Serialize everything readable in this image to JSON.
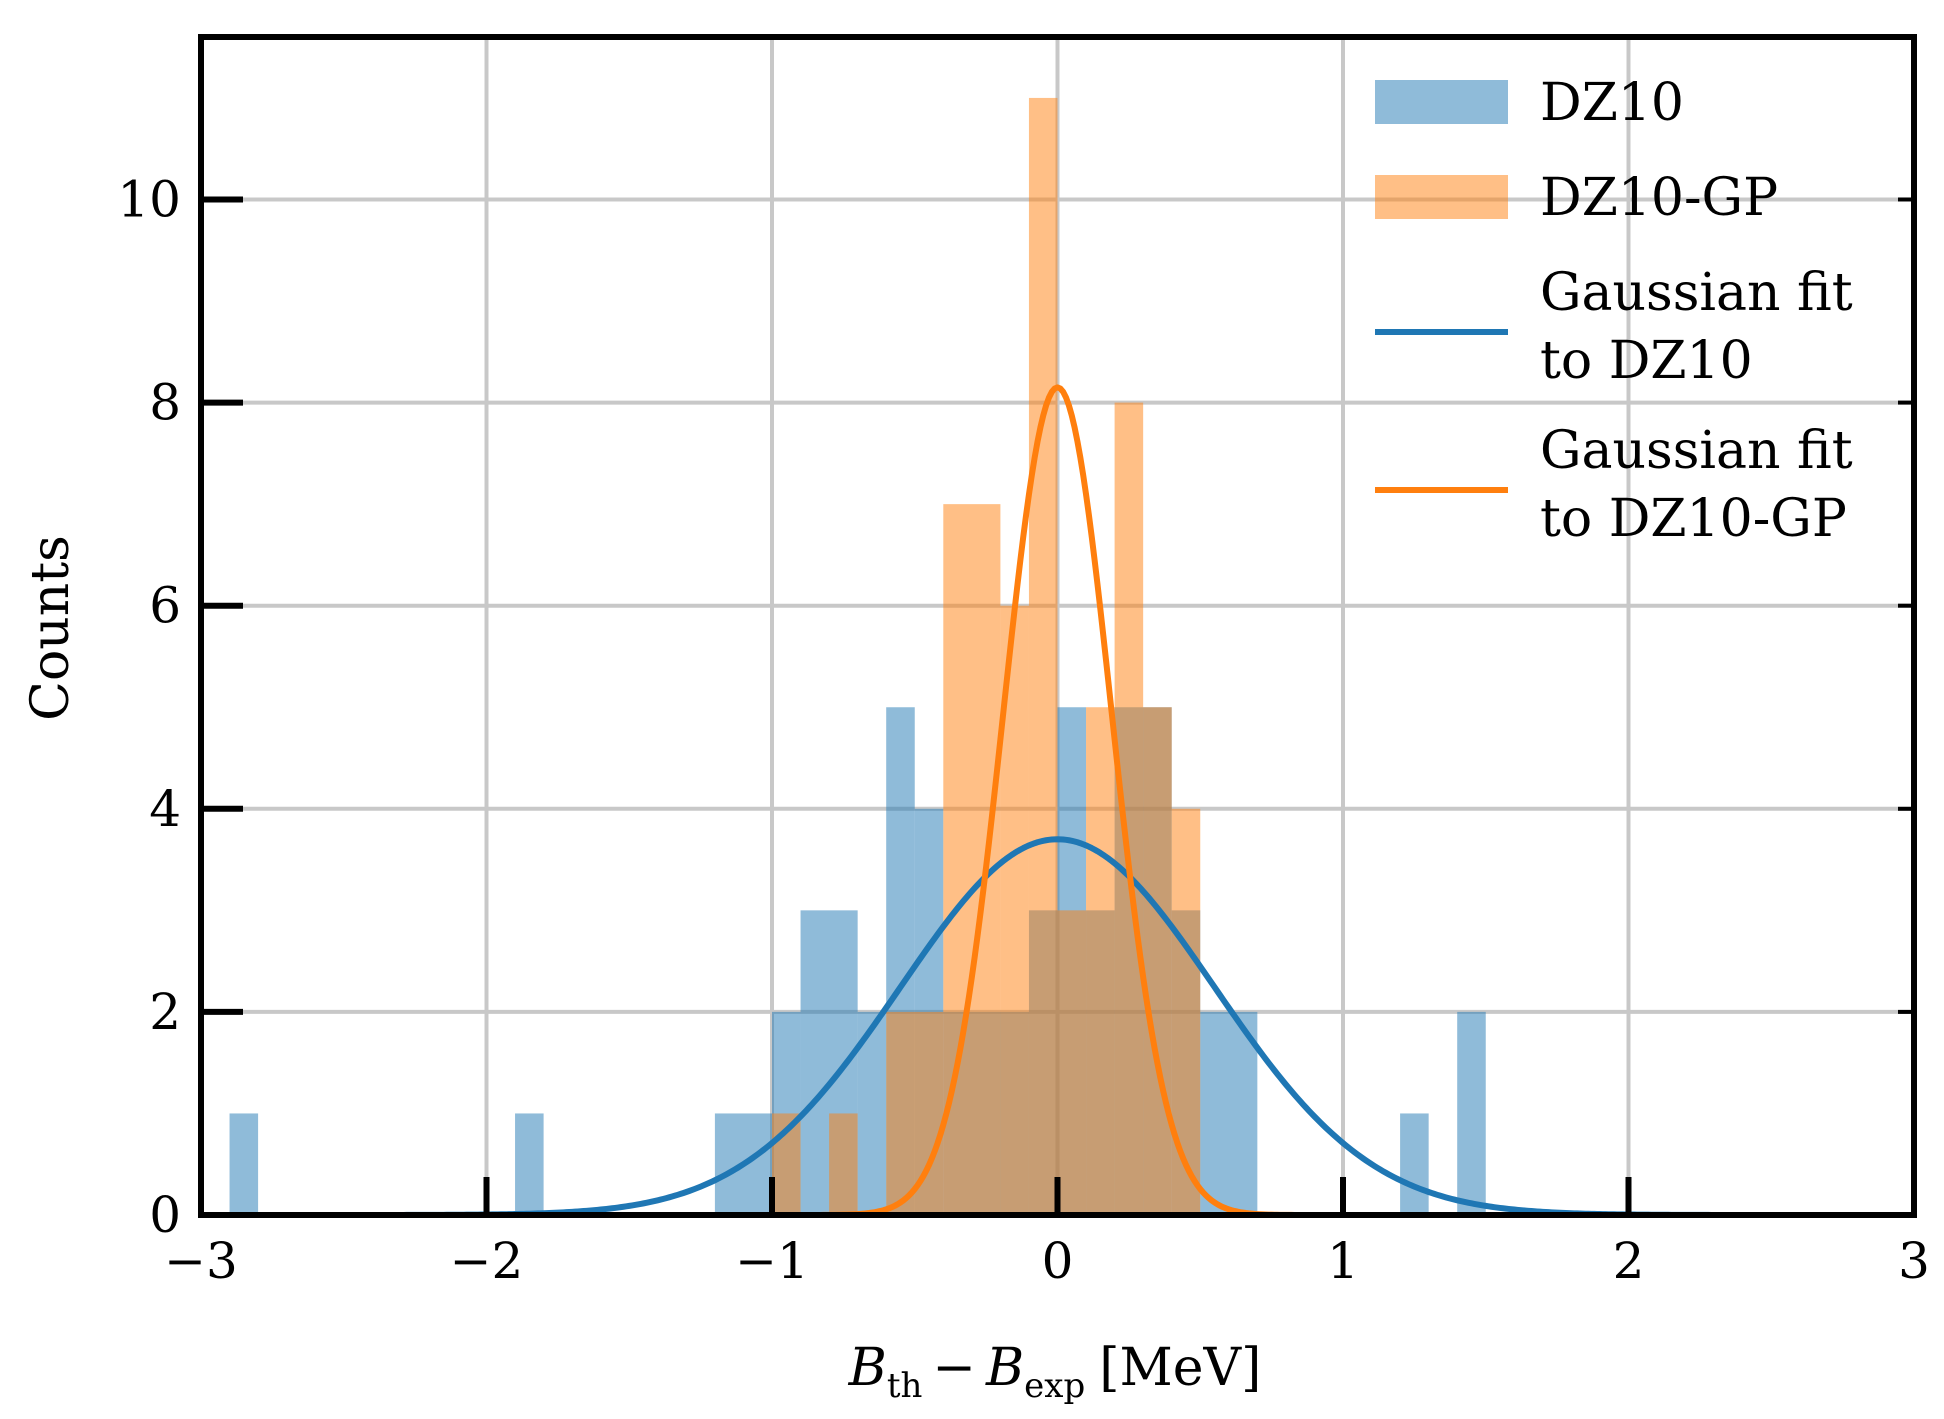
{
  "chart_data": {
    "type": "histogram",
    "xlabel": {
      "B": "B",
      "th": "th",
      "minus": "−",
      "B2": "B",
      "exp": "exp",
      "unit": "[MeV]"
    },
    "ylabel": "Counts",
    "xlim": [
      -3,
      3
    ],
    "ylim": [
      0,
      11.6
    ],
    "x_ticks": [
      -3,
      -2,
      -1,
      0,
      1,
      2,
      3
    ],
    "x_tick_labels": [
      "−3",
      "−2",
      "−1",
      "0",
      "1",
      "2",
      "3"
    ],
    "y_ticks": [
      0,
      2,
      4,
      6,
      8,
      10
    ],
    "y_tick_labels": [
      "0",
      "2",
      "4",
      "6",
      "8",
      "10"
    ],
    "grid": true,
    "legend_position": "top-right",
    "series": [
      {
        "name": "DZ10",
        "kind": "bars",
        "color": "#1f77b4",
        "opacity": 0.5,
        "bins": [
          {
            "x0": -2.9,
            "x1": -2.8,
            "count": 1
          },
          {
            "x0": -1.9,
            "x1": -1.8,
            "count": 1
          },
          {
            "x0": -1.2,
            "x1": -1.0,
            "count": 1
          },
          {
            "x0": -1.0,
            "x1": -0.9,
            "count": 2
          },
          {
            "x0": -0.9,
            "x1": -0.7,
            "count": 3
          },
          {
            "x0": -0.7,
            "x1": -0.6,
            "count": 2
          },
          {
            "x0": -0.6,
            "x1": -0.5,
            "count": 5
          },
          {
            "x0": -0.5,
            "x1": -0.4,
            "count": 4
          },
          {
            "x0": -0.4,
            "x1": -0.1,
            "count": 2
          },
          {
            "x0": -0.1,
            "x1": 0.0,
            "count": 3
          },
          {
            "x0": 0.0,
            "x1": 0.1,
            "count": 5
          },
          {
            "x0": 0.1,
            "x1": 0.2,
            "count": 3
          },
          {
            "x0": 0.2,
            "x1": 0.4,
            "count": 5
          },
          {
            "x0": 0.4,
            "x1": 0.5,
            "count": 3
          },
          {
            "x0": 0.5,
            "x1": 0.7,
            "count": 2
          },
          {
            "x0": 1.2,
            "x1": 1.3,
            "count": 1
          },
          {
            "x0": 1.4,
            "x1": 1.5,
            "count": 2
          }
        ]
      },
      {
        "name": "DZ10-GP",
        "kind": "bars",
        "color": "#ff7f0e",
        "opacity": 0.5,
        "bins": [
          {
            "x0": -1.0,
            "x1": -0.9,
            "count": 1
          },
          {
            "x0": -0.8,
            "x1": -0.7,
            "count": 1
          },
          {
            "x0": -0.6,
            "x1": -0.4,
            "count": 2
          },
          {
            "x0": -0.4,
            "x1": -0.2,
            "count": 7
          },
          {
            "x0": -0.2,
            "x1": -0.1,
            "count": 6
          },
          {
            "x0": -0.1,
            "x1": 0.0,
            "count": 11
          },
          {
            "x0": 0.0,
            "x1": 0.1,
            "count": 3
          },
          {
            "x0": 0.1,
            "x1": 0.2,
            "count": 5
          },
          {
            "x0": 0.2,
            "x1": 0.3,
            "count": 8
          },
          {
            "x0": 0.3,
            "x1": 0.4,
            "count": 5
          },
          {
            "x0": 0.4,
            "x1": 0.5,
            "count": 4
          }
        ]
      },
      {
        "name": "Gaussian fit to DZ10",
        "kind": "gaussian",
        "color": "#1f77b4",
        "amplitude": 3.7,
        "mean": 0.0,
        "sigma": 0.55
      },
      {
        "name": "Gaussian fit to DZ10-GP",
        "kind": "gaussian",
        "color": "#ff7f0e",
        "amplitude": 8.15,
        "mean": 0.0,
        "sigma": 0.19
      }
    ],
    "legend": [
      {
        "kind": "patch",
        "color": "#1f77b4",
        "lines": [
          "DZ10"
        ]
      },
      {
        "kind": "patch",
        "color": "#ff7f0e",
        "lines": [
          "DZ10-GP"
        ]
      },
      {
        "kind": "line",
        "color": "#1f77b4",
        "lines": [
          "Gaussian fit",
          "to DZ10"
        ]
      },
      {
        "kind": "line",
        "color": "#ff7f0e",
        "lines": [
          "Gaussian fit",
          "to DZ10-GP"
        ]
      }
    ]
  }
}
